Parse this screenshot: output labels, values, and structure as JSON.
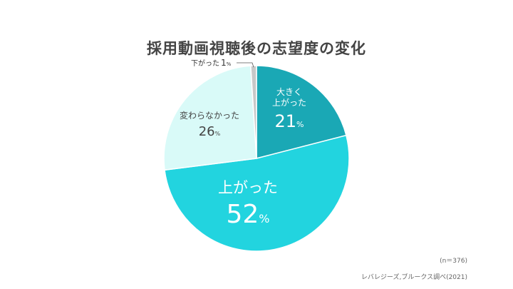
{
  "chart_data": {
    "type": "pie",
    "title": "採用動画視聴後の志望度の変化",
    "slices": [
      {
        "label_lines": [
          "大きく",
          "上がった"
        ],
        "value": 21,
        "unit": "%",
        "color": "#1aa8b5"
      },
      {
        "label_lines": [
          "上がった"
        ],
        "value": 52,
        "unit": "%",
        "color": "#22d4df"
      },
      {
        "label_lines": [
          "変わらなかった"
        ],
        "value": 26,
        "unit": "%",
        "color": "#d9faf8"
      },
      {
        "label_lines": [
          "下がった"
        ],
        "value": 1,
        "unit": "%",
        "color": "#c8c8c8"
      }
    ],
    "sample_note": "(n＝376)",
    "source_note": "レバレジーズ,ブルークス調べ(2021)"
  }
}
